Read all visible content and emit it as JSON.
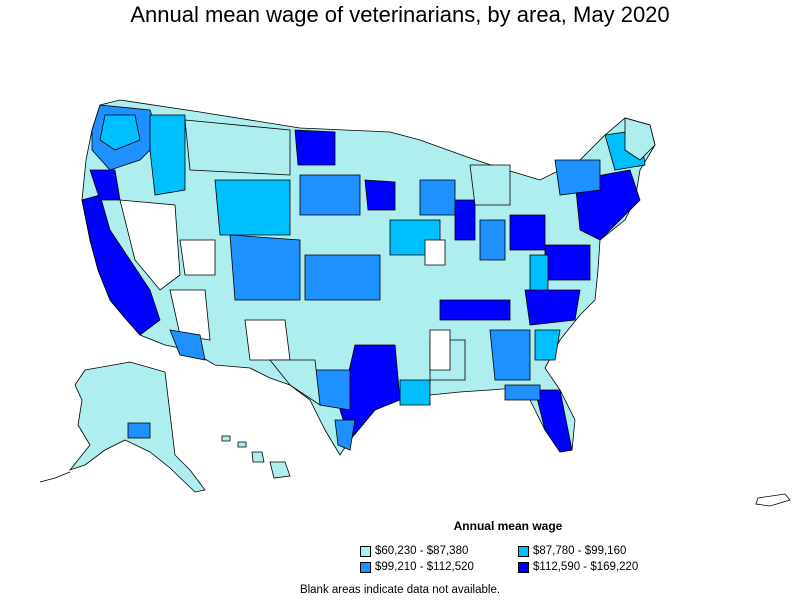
{
  "title": "Annual mean wage of veterinarians, by area, May 2020",
  "legend": {
    "title": "Annual mean wage",
    "items": [
      {
        "label": "$60,230 - $87,380",
        "color": "#aeeeee"
      },
      {
        "label": "$87,780 - $99,160",
        "color": "#00bfff"
      },
      {
        "label": "$99,210 - $112,520",
        "color": "#1e90ff"
      },
      {
        "label": "$112,590 - $169,220",
        "color": "#0000ff"
      }
    ]
  },
  "footnote": "Blank areas indicate data not available.",
  "colors": {
    "no_data": "#ffffff",
    "border": "#000000"
  }
}
